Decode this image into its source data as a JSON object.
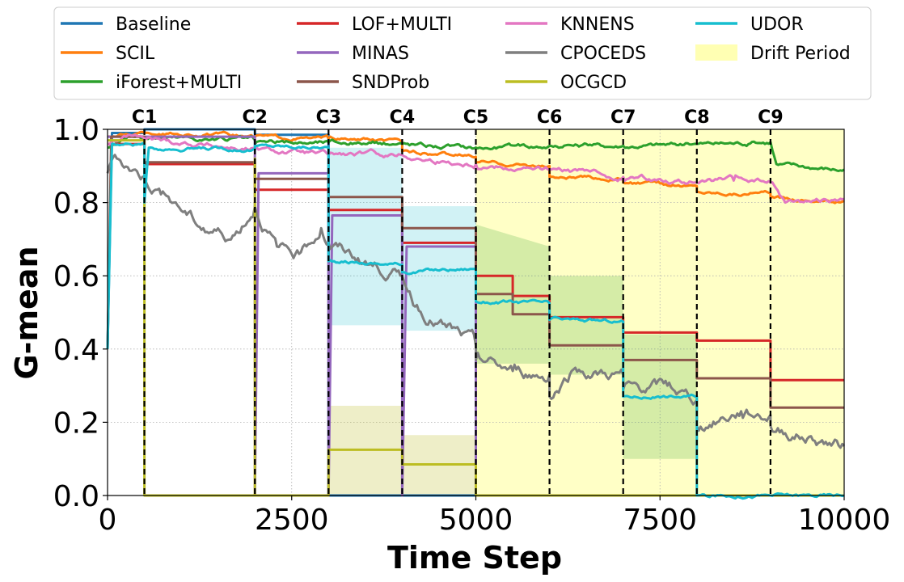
{
  "chart_data": {
    "type": "line",
    "title": "",
    "xlabel": "Time Step",
    "ylabel": "G-mean",
    "xlim": [
      0,
      10000
    ],
    "ylim": [
      0.0,
      1.0
    ],
    "xticks": [
      0,
      2500,
      5000,
      7500,
      10000
    ],
    "xtick_labels": [
      "0",
      "2500",
      "5000",
      "7500",
      "10000"
    ],
    "yticks": [
      0.0,
      0.2,
      0.4,
      0.6,
      0.8,
      1.0
    ],
    "ytick_labels": [
      "0.0",
      "0.2",
      "0.4",
      "0.6",
      "0.8",
      "1.0"
    ],
    "grid": true,
    "legend_position": "top-center (above plot)",
    "drift_markers": [
      {
        "label": "C1",
        "x": 500
      },
      {
        "label": "C2",
        "x": 2000
      },
      {
        "label": "C3",
        "x": 3000
      },
      {
        "label": "C4",
        "x": 4000
      },
      {
        "label": "C5",
        "x": 5000
      },
      {
        "label": "C6",
        "x": 6000
      },
      {
        "label": "C7",
        "x": 7000
      },
      {
        "label": "C8",
        "x": 8000
      },
      {
        "label": "C9",
        "x": 9000
      }
    ],
    "drift_periods": [
      [
        5000,
        10000
      ]
    ],
    "drift_period_label": "Drift Period",
    "drift_period_color": "#ffffb3",
    "series": [
      {
        "name": "Baseline",
        "color": "#1f77b4",
        "noise": 0.0,
        "points": [
          [
            0,
            0.4
          ],
          [
            60,
            0.99
          ],
          [
            500,
            0.99
          ],
          [
            500,
            1.0
          ],
          [
            2000,
            1.0
          ],
          [
            2000,
            0.985
          ],
          [
            3000,
            0.985
          ],
          [
            3000,
            0.0
          ],
          [
            10000,
            0.0
          ]
        ]
      },
      {
        "name": "SCIL",
        "color": "#ff7f0e",
        "noise": 0.004,
        "points": [
          [
            0,
            0.98
          ],
          [
            500,
            0.99
          ],
          [
            2000,
            0.98
          ],
          [
            3000,
            0.975
          ],
          [
            4000,
            0.965
          ],
          [
            4000,
            0.94
          ],
          [
            5000,
            0.925
          ],
          [
            5000,
            0.91
          ],
          [
            6000,
            0.9
          ],
          [
            6000,
            0.87
          ],
          [
            7000,
            0.865
          ],
          [
            7000,
            0.855
          ],
          [
            8000,
            0.845
          ],
          [
            8000,
            0.83
          ],
          [
            9000,
            0.825
          ],
          [
            9000,
            0.812
          ],
          [
            10000,
            0.805
          ]
        ]
      },
      {
        "name": "iForest+MULTI",
        "color": "#2ca02c",
        "noise": 0.005,
        "points": [
          [
            0,
            0.95
          ],
          [
            300,
            0.985
          ],
          [
            500,
            0.98
          ],
          [
            2000,
            0.97
          ],
          [
            2000,
            0.96
          ],
          [
            3000,
            0.965
          ],
          [
            4000,
            0.96
          ],
          [
            5000,
            0.95
          ],
          [
            6000,
            0.955
          ],
          [
            7000,
            0.955
          ],
          [
            8000,
            0.96
          ],
          [
            9000,
            0.965
          ],
          [
            9080,
            0.905
          ],
          [
            10000,
            0.89
          ]
        ]
      },
      {
        "name": "LOF+MULTI",
        "color": "#d62728",
        "noise": 0.0,
        "points": [
          [
            0,
            0.96
          ],
          [
            500,
            0.96
          ],
          [
            500,
            0.905
          ],
          [
            2000,
            0.905
          ],
          [
            2000,
            0.835
          ],
          [
            3000,
            0.835
          ],
          [
            3000,
            0.78
          ],
          [
            4000,
            0.78
          ],
          [
            4000,
            0.69
          ],
          [
            5000,
            0.69
          ],
          [
            5000,
            0.6
          ],
          [
            5500,
            0.6
          ],
          [
            5500,
            0.545
          ],
          [
            6000,
            0.545
          ],
          [
            6000,
            0.487
          ],
          [
            7000,
            0.487
          ],
          [
            7000,
            0.445
          ],
          [
            8000,
            0.445
          ],
          [
            8000,
            0.423
          ],
          [
            9000,
            0.423
          ],
          [
            9000,
            0.315
          ],
          [
            10000,
            0.315
          ]
        ]
      },
      {
        "name": "MINAS",
        "color": "#9467bd",
        "noise": 0.0,
        "points": [
          [
            0,
            0.98
          ],
          [
            2000,
            0.98
          ],
          [
            2000,
            0.0
          ],
          [
            2050,
            0.88
          ],
          [
            3000,
            0.88
          ],
          [
            3000,
            0.0
          ],
          [
            3050,
            0.765
          ],
          [
            4000,
            0.765
          ],
          [
            4000,
            0.0
          ],
          [
            4060,
            0.68
          ],
          [
            5000,
            0.68
          ],
          [
            5000,
            0.0
          ],
          [
            10000,
            0.0
          ]
        ]
      },
      {
        "name": "SNDProb",
        "color": "#8c564b",
        "noise": 0.0,
        "points": [
          [
            0,
            0.4
          ],
          [
            50,
            0.98
          ],
          [
            500,
            0.98
          ],
          [
            500,
            0.91
          ],
          [
            2000,
            0.91
          ],
          [
            2000,
            0.865
          ],
          [
            3000,
            0.865
          ],
          [
            3000,
            0.815
          ],
          [
            4000,
            0.815
          ],
          [
            4000,
            0.73
          ],
          [
            5000,
            0.73
          ],
          [
            5000,
            0.55
          ],
          [
            5500,
            0.55
          ],
          [
            5500,
            0.495
          ],
          [
            6000,
            0.495
          ],
          [
            6000,
            0.41
          ],
          [
            7000,
            0.41
          ],
          [
            7000,
            0.37
          ],
          [
            8000,
            0.37
          ],
          [
            8000,
            0.32
          ],
          [
            9000,
            0.32
          ],
          [
            9000,
            0.24
          ],
          [
            10000,
            0.24
          ]
        ]
      },
      {
        "name": "KNNENS",
        "color": "#e377c2",
        "noise": 0.006,
        "points": [
          [
            0,
            0.96
          ],
          [
            300,
            0.985
          ],
          [
            500,
            0.975
          ],
          [
            2000,
            0.945
          ],
          [
            3000,
            0.93
          ],
          [
            4000,
            0.93
          ],
          [
            4200,
            0.92
          ],
          [
            5000,
            0.905
          ],
          [
            6000,
            0.89
          ],
          [
            7000,
            0.87
          ],
          [
            8000,
            0.855
          ],
          [
            8500,
            0.86
          ],
          [
            9000,
            0.855
          ],
          [
            9200,
            0.8
          ],
          [
            10000,
            0.81
          ]
        ]
      },
      {
        "name": "CPOCEDS",
        "color": "#7f7f7f",
        "noise": 0.014,
        "points": [
          [
            0,
            0.88
          ],
          [
            100,
            0.93
          ],
          [
            500,
            0.87
          ],
          [
            900,
            0.8
          ],
          [
            1300,
            0.73
          ],
          [
            1700,
            0.71
          ],
          [
            2000,
            0.79
          ],
          [
            2300,
            0.68
          ],
          [
            2600,
            0.66
          ],
          [
            2900,
            0.73
          ],
          [
            3000,
            0.69
          ],
          [
            3500,
            0.64
          ],
          [
            4000,
            0.6
          ],
          [
            4200,
            0.52
          ],
          [
            4600,
            0.46
          ],
          [
            5000,
            0.41
          ],
          [
            5000,
            0.37
          ],
          [
            5500,
            0.34
          ],
          [
            6000,
            0.33
          ],
          [
            6000,
            0.27
          ],
          [
            6300,
            0.34
          ],
          [
            7000,
            0.33
          ],
          [
            7000,
            0.29
          ],
          [
            7600,
            0.3
          ],
          [
            8000,
            0.26
          ],
          [
            8000,
            0.19
          ],
          [
            8600,
            0.23
          ],
          [
            9000,
            0.22
          ],
          [
            9000,
            0.19
          ],
          [
            10000,
            0.135
          ]
        ]
      },
      {
        "name": "OCGCD",
        "color": "#bcbd22",
        "noise": 0.0,
        "points": [
          [
            0,
            0.97
          ],
          [
            500,
            0.97
          ],
          [
            500,
            0.0
          ],
          [
            2000,
            0.0
          ],
          [
            2000,
            0.92
          ],
          [
            2000,
            0.0
          ],
          [
            3000,
            0.0
          ],
          [
            3000,
            0.125
          ],
          [
            4000,
            0.125
          ],
          [
            4000,
            0.085
          ],
          [
            5000,
            0.085
          ],
          [
            5000,
            0.0
          ],
          [
            10000,
            0.0
          ]
        ]
      },
      {
        "name": "UDOR",
        "color": "#17becf",
        "noise": 0.004,
        "points": [
          [
            0,
            0.4
          ],
          [
            60,
            0.96
          ],
          [
            500,
            0.96
          ],
          [
            500,
            0.8
          ],
          [
            560,
            0.95
          ],
          [
            2000,
            0.945
          ],
          [
            2000,
            0.955
          ],
          [
            3000,
            0.95
          ],
          [
            3000,
            0.64
          ],
          [
            4000,
            0.63
          ],
          [
            4000,
            0.61
          ],
          [
            5000,
            0.62
          ],
          [
            5000,
            0.53
          ],
          [
            6000,
            0.525
          ],
          [
            6000,
            0.48
          ],
          [
            7000,
            0.475
          ],
          [
            7000,
            0.27
          ],
          [
            8000,
            0.27
          ],
          [
            8000,
            0.0
          ],
          [
            10000,
            0.0
          ]
        ]
      }
    ],
    "bands": [
      {
        "color": "#17becf",
        "opacity": 0.2,
        "x": [
          3000,
          4000,
          4000,
          5000
        ],
        "low": [
          0.465,
          0.465,
          0.45,
          0.45
        ],
        "high": [
          0.95,
          0.95,
          0.79,
          0.79
        ]
      },
      {
        "color": "#2ca02c",
        "opacity": 0.2,
        "x": [
          5000,
          6000,
          6000,
          7000,
          7000,
          8000
        ],
        "low": [
          0.36,
          0.36,
          0.33,
          0.33,
          0.1,
          0.1
        ],
        "high": [
          0.74,
          0.68,
          0.6,
          0.6,
          0.44,
          0.44
        ]
      },
      {
        "color": "#bcbd22",
        "opacity": 0.25,
        "x": [
          3000,
          4000,
          4000,
          5000
        ],
        "low": [
          0.0,
          0.0,
          0.0,
          0.0
        ],
        "high": [
          0.245,
          0.245,
          0.165,
          0.165
        ]
      }
    ]
  }
}
